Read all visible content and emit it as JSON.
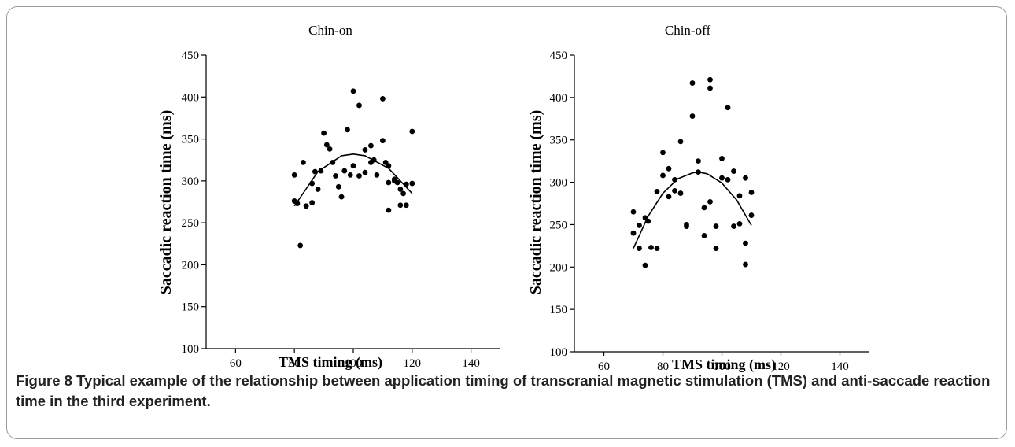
{
  "figure": {
    "caption_label": "Figure 8",
    "caption_text": "Typical example of the relationship between application timing of transcranial magnetic stimulation (TMS) and anti-saccade reaction time in the third experiment."
  },
  "chart_data": [
    {
      "type": "scatter",
      "title": "Chin-on",
      "xlabel": "TMS timing (ms)",
      "ylabel": "Saccadic reaction time (ms)",
      "xlim": [
        50,
        150
      ],
      "ylim": [
        100,
        450
      ],
      "xticks": [
        60,
        80,
        100,
        120,
        140
      ],
      "yticks": [
        100,
        150,
        200,
        250,
        300,
        350,
        400,
        450
      ],
      "grid": false,
      "points": [
        [
          80,
          307
        ],
        [
          80,
          276
        ],
        [
          81,
          273
        ],
        [
          82,
          223
        ],
        [
          83,
          322
        ],
        [
          84,
          270
        ],
        [
          86,
          297
        ],
        [
          86,
          274
        ],
        [
          87,
          311
        ],
        [
          88,
          290
        ],
        [
          89,
          312
        ],
        [
          90,
          357
        ],
        [
          91,
          343
        ],
        [
          92,
          338
        ],
        [
          93,
          322
        ],
        [
          94,
          306
        ],
        [
          95,
          293
        ],
        [
          96,
          281
        ],
        [
          97,
          312
        ],
        [
          98,
          361
        ],
        [
          99,
          307
        ],
        [
          100,
          407
        ],
        [
          100,
          318
        ],
        [
          102,
          390
        ],
        [
          102,
          306
        ],
        [
          104,
          337
        ],
        [
          104,
          310
        ],
        [
          106,
          342
        ],
        [
          106,
          322
        ],
        [
          107,
          325
        ],
        [
          108,
          307
        ],
        [
          110,
          398
        ],
        [
          110,
          348
        ],
        [
          111,
          322
        ],
        [
          112,
          318
        ],
        [
          112,
          298
        ],
        [
          112,
          265
        ],
        [
          114,
          302
        ],
        [
          114,
          300
        ],
        [
          115,
          298
        ],
        [
          116,
          290
        ],
        [
          116,
          271
        ],
        [
          117,
          285
        ],
        [
          118,
          271
        ],
        [
          118,
          296
        ],
        [
          120,
          359
        ],
        [
          120,
          297
        ]
      ],
      "fit": {
        "type": "quadratic",
        "x": [
          80,
          88,
          96,
          100,
          104,
          112,
          120
        ],
        "y": [
          270,
          311,
          330,
          332,
          330,
          315,
          285
        ]
      }
    },
    {
      "type": "scatter",
      "title": "Chin-off",
      "xlabel": "TMS timing (ms)",
      "ylabel": "Saccadic reaction time (ms)",
      "xlim": [
        50,
        150
      ],
      "ylim": [
        100,
        450
      ],
      "xticks": [
        60,
        80,
        100,
        120,
        140
      ],
      "yticks": [
        100,
        150,
        200,
        250,
        300,
        350,
        400,
        450
      ],
      "grid": false,
      "points": [
        [
          70,
          265
        ],
        [
          70,
          240
        ],
        [
          72,
          249
        ],
        [
          72,
          222
        ],
        [
          74,
          258
        ],
        [
          74,
          202
        ],
        [
          75,
          254
        ],
        [
          76,
          223
        ],
        [
          78,
          289
        ],
        [
          78,
          222
        ],
        [
          80,
          335
        ],
        [
          80,
          308
        ],
        [
          82,
          316
        ],
        [
          82,
          283
        ],
        [
          84,
          303
        ],
        [
          84,
          290
        ],
        [
          86,
          348
        ],
        [
          86,
          287
        ],
        [
          88,
          250
        ],
        [
          88,
          248
        ],
        [
          90,
          417
        ],
        [
          90,
          378
        ],
        [
          92,
          325
        ],
        [
          92,
          312
        ],
        [
          94,
          270
        ],
        [
          94,
          237
        ],
        [
          96,
          421
        ],
        [
          96,
          411
        ],
        [
          96,
          277
        ],
        [
          98,
          248
        ],
        [
          98,
          222
        ],
        [
          100,
          328
        ],
        [
          100,
          305
        ],
        [
          102,
          388
        ],
        [
          102,
          303
        ],
        [
          104,
          313
        ],
        [
          104,
          248
        ],
        [
          106,
          284
        ],
        [
          106,
          251
        ],
        [
          108,
          305
        ],
        [
          108,
          228
        ],
        [
          108,
          203
        ],
        [
          110,
          288
        ],
        [
          110,
          261
        ]
      ],
      "fit": {
        "type": "quadratic",
        "x": [
          70,
          75,
          80,
          85,
          90,
          92,
          95,
          100,
          105,
          110
        ],
        "y": [
          222,
          260,
          287,
          304,
          311,
          312,
          310,
          299,
          279,
          249
        ]
      }
    }
  ]
}
